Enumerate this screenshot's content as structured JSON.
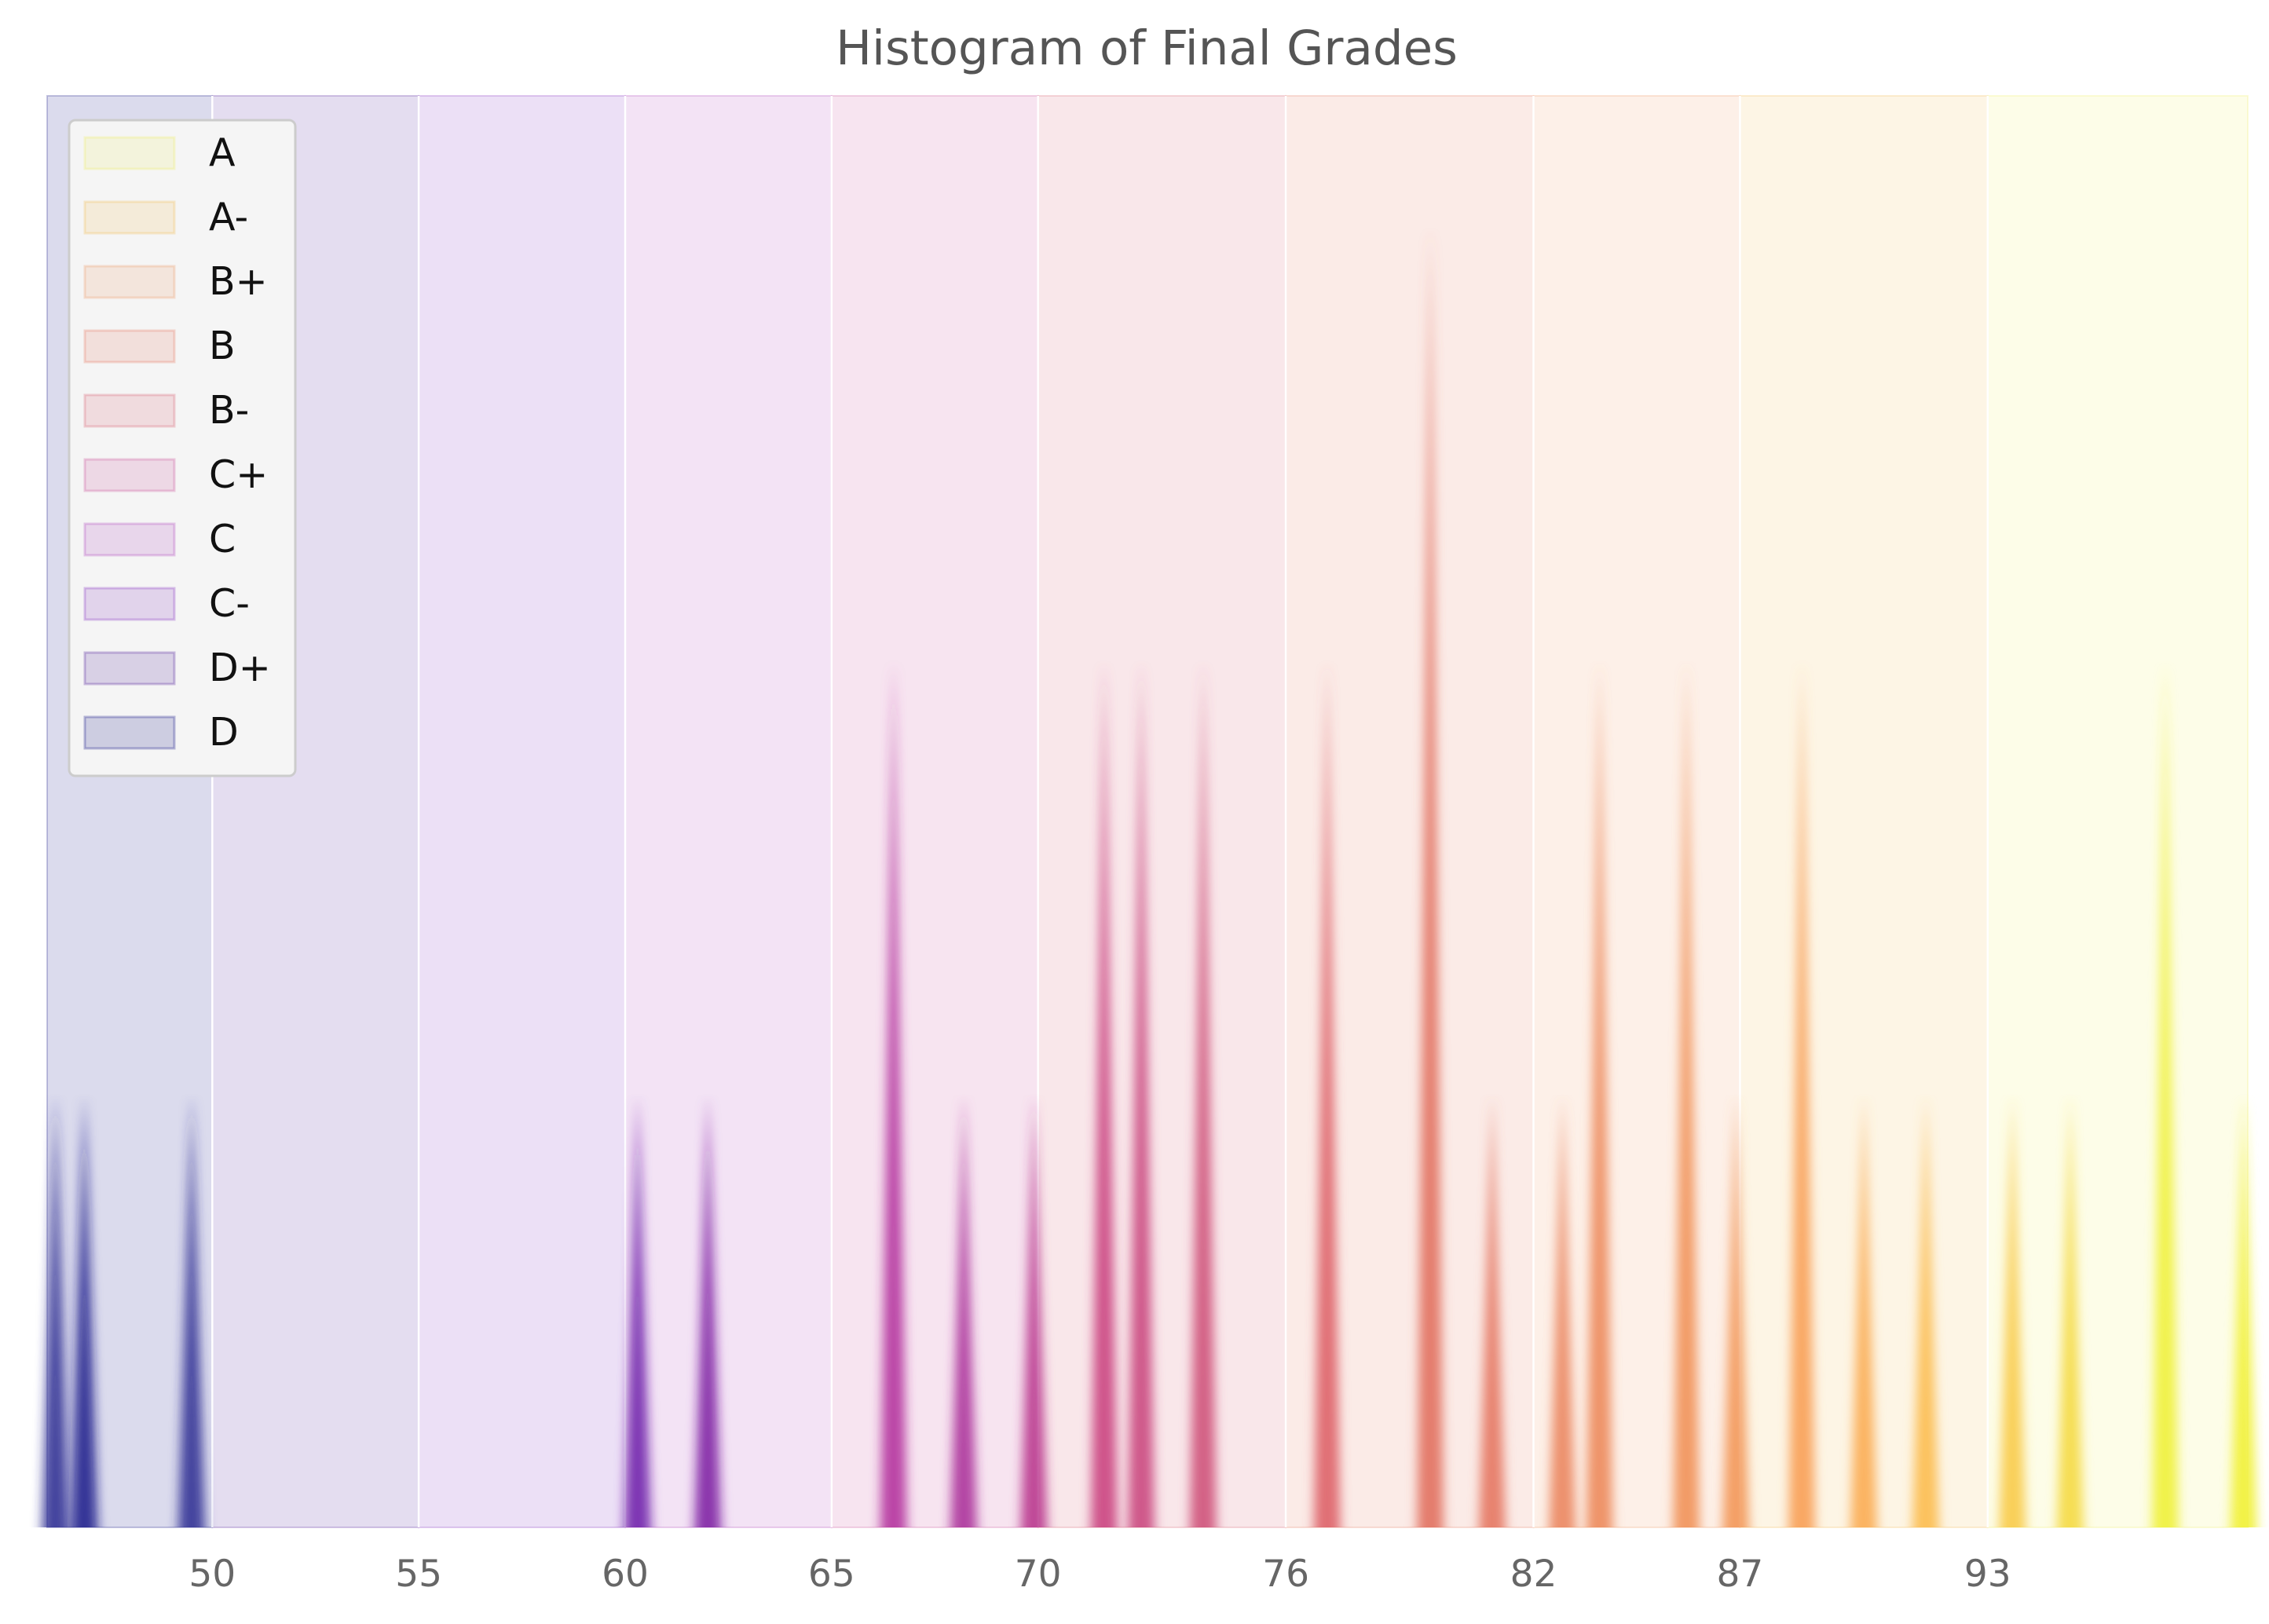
{
  "chart_data": {
    "type": "histogram",
    "title": "Histogram of Final Grades",
    "xlabel": "",
    "ylabel": "",
    "xlim": [
      46,
      99.3
    ],
    "ylim": [
      0,
      3.3
    ],
    "grid": "vertical",
    "legend_position": "top-left",
    "x_ticks": [
      {
        "value": 50,
        "label": "50"
      },
      {
        "value": 55,
        "label": "55"
      },
      {
        "value": 60,
        "label": "60"
      },
      {
        "value": 65,
        "label": "65"
      },
      {
        "value": 70,
        "label": "70"
      },
      {
        "value": 76,
        "label": "76"
      },
      {
        "value": 82,
        "label": "82"
      },
      {
        "value": 87,
        "label": "87"
      },
      {
        "value": 93,
        "label": "93"
      }
    ],
    "grade_bands": [
      {
        "label": "D",
        "from": 46,
        "to": 50,
        "color": "#1e1e8c"
      },
      {
        "label": "D+",
        "from": 50,
        "to": 55,
        "color": "#5a2aa0"
      },
      {
        "label": "C-",
        "from": 55,
        "to": 60,
        "color": "#8a3cc4"
      },
      {
        "label": "C",
        "from": 60,
        "to": 65,
        "color": "#b450c0"
      },
      {
        "label": "C+",
        "from": 65,
        "to": 70,
        "color": "#cc5aa0"
      },
      {
        "label": "B-",
        "from": 70,
        "to": 76,
        "color": "#dc6a7a"
      },
      {
        "label": "B",
        "from": 76,
        "to": 82,
        "color": "#e8826a"
      },
      {
        "label": "B+",
        "from": 82,
        "to": 87,
        "color": "#f0a070"
      },
      {
        "label": "A-",
        "from": 87,
        "to": 93,
        "color": "#f2c060"
      },
      {
        "label": "A",
        "from": 93,
        "to": 99.3,
        "color": "#f0f070"
      }
    ],
    "legend": [
      "A",
      "A-",
      "B+",
      "B",
      "B-",
      "C+",
      "C",
      "C-",
      "D+",
      "D"
    ],
    "bins": [
      {
        "x": 46.2,
        "count": 1,
        "color": "#2a2a90"
      },
      {
        "x": 46.9,
        "count": 1,
        "color": "#1a1a88"
      },
      {
        "x": 49.5,
        "count": 1,
        "color": "#2a2a90"
      },
      {
        "x": 60.3,
        "count": 1,
        "color": "#6a1aa8"
      },
      {
        "x": 62.0,
        "count": 1,
        "color": "#7a1aa0"
      },
      {
        "x": 66.5,
        "count": 2,
        "color": "#b0289a"
      },
      {
        "x": 68.2,
        "count": 1,
        "color": "#a82896"
      },
      {
        "x": 69.9,
        "count": 1,
        "color": "#b63088"
      },
      {
        "x": 71.6,
        "count": 2,
        "color": "#c83a7a"
      },
      {
        "x": 72.5,
        "count": 2,
        "color": "#c8407a"
      },
      {
        "x": 74.0,
        "count": 2,
        "color": "#cc4a74"
      },
      {
        "x": 77.0,
        "count": 2,
        "color": "#dc5a62"
      },
      {
        "x": 79.5,
        "count": 3,
        "color": "#e06a58"
      },
      {
        "x": 81.0,
        "count": 1,
        "color": "#e4705a"
      },
      {
        "x": 82.7,
        "count": 1,
        "color": "#ea8058"
      },
      {
        "x": 83.6,
        "count": 2,
        "color": "#ec8454"
      },
      {
        "x": 85.7,
        "count": 2,
        "color": "#f08c50"
      },
      {
        "x": 86.9,
        "count": 1,
        "color": "#f29250"
      },
      {
        "x": 88.5,
        "count": 2,
        "color": "#f89a4c"
      },
      {
        "x": 90.0,
        "count": 1,
        "color": "#faa84a"
      },
      {
        "x": 91.5,
        "count": 1,
        "color": "#fcb844"
      },
      {
        "x": 93.6,
        "count": 1,
        "color": "#f8c840"
      },
      {
        "x": 95.0,
        "count": 1,
        "color": "#f4d83a"
      },
      {
        "x": 97.3,
        "count": 2,
        "color": "#eef030"
      },
      {
        "x": 99.2,
        "count": 1,
        "color": "#f0f028"
      }
    ]
  }
}
